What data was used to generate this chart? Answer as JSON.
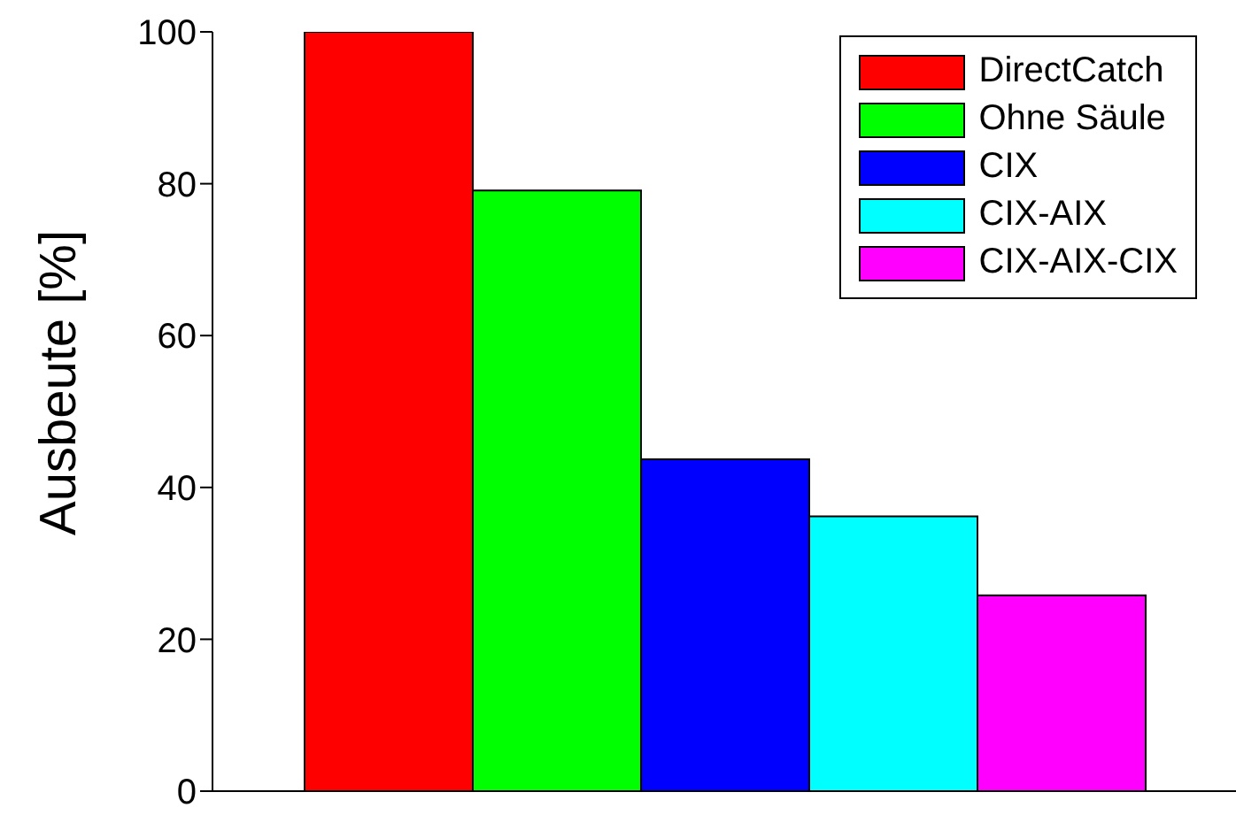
{
  "chart_data": {
    "type": "bar",
    "ylabel": "Ausbeute [%]",
    "categories": [
      null
    ],
    "series": [
      {
        "name": "DirectCatch",
        "color": "#ff0000",
        "values": [
          100
        ]
      },
      {
        "name": "Ohne Säule",
        "color": "#00ff00",
        "values": [
          79.1
        ]
      },
      {
        "name": "CIX",
        "color": "#0000ff",
        "values": [
          43.7
        ]
      },
      {
        "name": "CIX-AIX",
        "color": "#00ffff",
        "values": [
          36.2
        ]
      },
      {
        "name": "CIX-AIX-CIX",
        "color": "#ff00ff",
        "values": [
          25.8
        ]
      }
    ],
    "ylim": [
      0,
      100
    ],
    "yticks": [
      0,
      20,
      40,
      60,
      80,
      100
    ],
    "grid": false,
    "legend": "top right"
  }
}
